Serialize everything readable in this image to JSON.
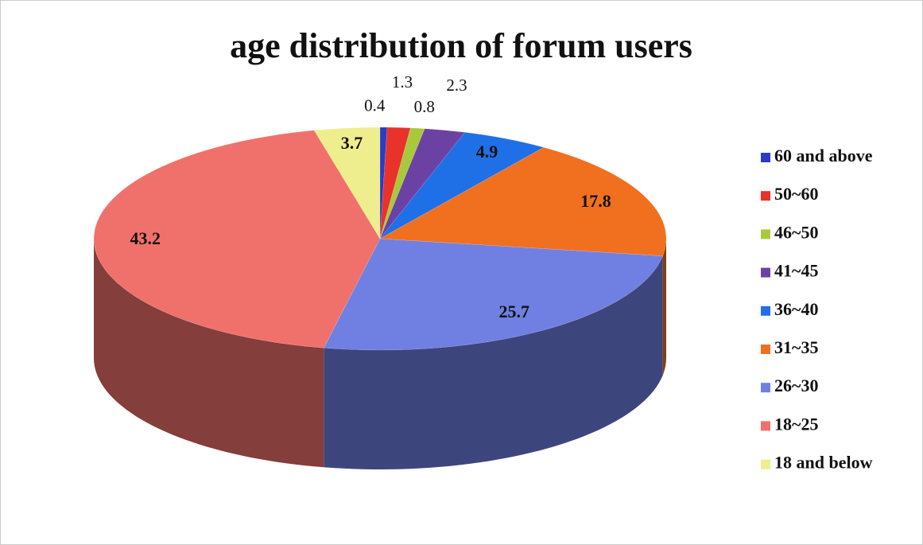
{
  "chart_data": {
    "type": "pie",
    "title": "age distribution of forum users",
    "categories": [
      "60 and above",
      "50~60",
      "46~50",
      "41~45",
      "36~40",
      "31~35",
      "26~30",
      "18~25",
      "18 and below"
    ],
    "values": [
      0.4,
      1.3,
      0.8,
      2.3,
      4.9,
      17.8,
      25.7,
      43.2,
      3.7
    ],
    "colors": [
      "#2a3cc4",
      "#e8322a",
      "#a9c93c",
      "#6b42a3",
      "#1f6fe6",
      "#f0701f",
      "#6f80e2",
      "#f0716b",
      "#eeee8e"
    ],
    "legend": "right"
  }
}
